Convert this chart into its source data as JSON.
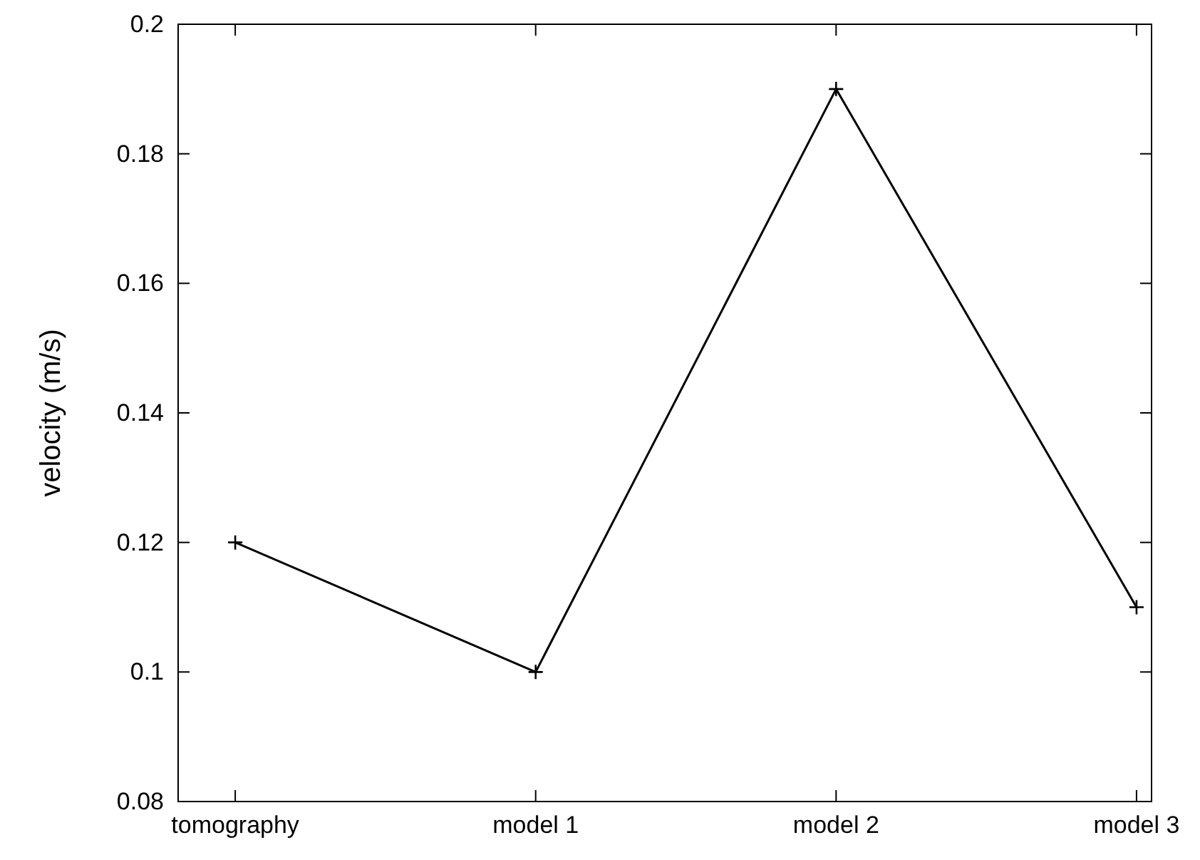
{
  "chart_data": {
    "type": "line",
    "ylabel": "velocity (m/s)",
    "categories": [
      "tomography",
      "model 1",
      "model 2",
      "model 3"
    ],
    "series": [
      {
        "color": "#000000",
        "values": [
          0.12,
          0.1,
          0.19,
          0.11
        ]
      }
    ],
    "ylim": [
      0.08,
      0.2
    ],
    "yticks": [
      0.08,
      0.1,
      0.12,
      0.14,
      0.16,
      0.18,
      0.2
    ],
    "marker": "cross",
    "line_style": "solid"
  }
}
